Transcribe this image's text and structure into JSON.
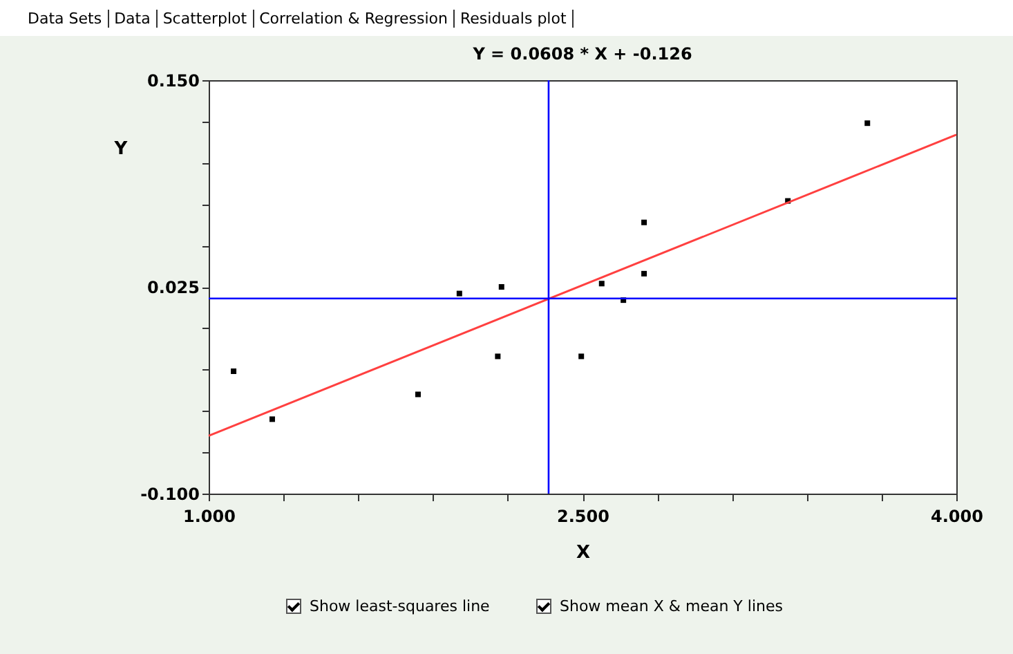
{
  "chart_data": {
    "type": "scatter",
    "title": "Y = 0.0608 * X  + -0.126",
    "xlabel": "X",
    "ylabel": "Y",
    "x": [
      1.1,
      1.255,
      1.84,
      2.006,
      2.16,
      2.175,
      2.495,
      2.577,
      2.664,
      2.747,
      2.747,
      3.324,
      3.643
    ],
    "series": [
      {
        "color": "#000000",
        "marker": "square",
        "values": [
          -0.026,
          -0.055,
          -0.04,
          0.021,
          -0.017,
          0.025,
          -0.017,
          0.027,
          0.017,
          0.033,
          0.064,
          0.077,
          0.124
        ]
      },
      {
        "type": "line",
        "color": "#ff4040",
        "x": [
          1,
          4
        ],
        "values": [
          -0.065,
          0.117
        ]
      }
    ],
    "ref_lines": [
      {
        "axis": "x",
        "value": 2.364,
        "color": "#0000ff"
      },
      {
        "axis": "y",
        "value": 0.018,
        "color": "#0000ff"
      }
    ],
    "xlim": [
      1,
      4
    ],
    "ylim": [
      -0.1,
      0.15
    ],
    "xticks": [
      {
        "value": 1,
        "label": "1.000"
      },
      {
        "value": 1.3,
        "label": null
      },
      {
        "value": 1.6,
        "label": null
      },
      {
        "value": 1.9,
        "label": null
      },
      {
        "value": 2.2,
        "label": null
      },
      {
        "value": 2.5,
        "label": "2.500"
      },
      {
        "value": 2.8,
        "label": null
      },
      {
        "value": 3.1,
        "label": null
      },
      {
        "value": 3.4,
        "label": null
      },
      {
        "value": 3.7,
        "label": null
      },
      {
        "value": 4,
        "label": "4.000"
      }
    ],
    "yticks": [
      {
        "value": -0.1,
        "label": "-0.100"
      },
      {
        "value": -0.075,
        "label": null
      },
      {
        "value": -0.05,
        "label": null
      },
      {
        "value": -0.025,
        "label": null
      },
      {
        "value": 0,
        "label": null
      },
      {
        "value": 0.025,
        "label": "0.025"
      },
      {
        "value": 0.05,
        "label": null
      },
      {
        "value": 0.075,
        "label": null
      },
      {
        "value": 0.1,
        "label": null
      },
      {
        "value": 0.125,
        "label": null
      },
      {
        "value": 0.15,
        "label": "0.150"
      }
    ],
    "annotations": [
      "Data Sets",
      "Data",
      "Scatterplot",
      "Correlation & Regression",
      "Residuals plot",
      "Show least-squares line",
      "Show mean X & mean Y lines"
    ]
  }
}
